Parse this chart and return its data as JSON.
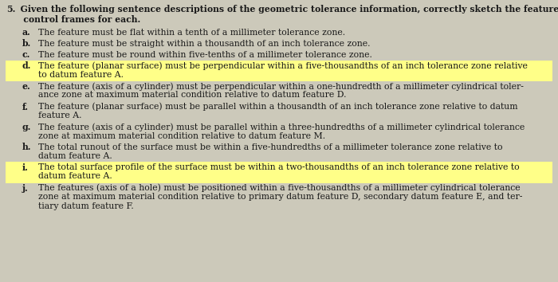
{
  "background_color": "#ccc9ba",
  "title_number": "5.",
  "title_rest": "  Given the following sentence descriptions of the geometric tolerance information, correctly sketch the feature",
  "title_line2": "   control frames for each.",
  "items": [
    {
      "label": "a.",
      "text": "The feature must be flat within a tenth of a millimeter tolerance zone.",
      "lines": 1,
      "highlight": false
    },
    {
      "label": "b.",
      "text": "The feature must be straight within a thousandth of an inch tolerance zone.",
      "lines": 1,
      "highlight": false
    },
    {
      "label": "c.",
      "text": "The feature must be round within five-tenths of a millimeter tolerance zone.",
      "lines": 1,
      "highlight": false
    },
    {
      "label": "d.",
      "text": "The feature (planar surface) must be perpendicular within a five-thousandths of an inch tolerance zone relative\n      to datum feature A.",
      "lines": 2,
      "highlight": true
    },
    {
      "label": "e.",
      "text": "The feature (axis of a cylinder) must be perpendicular within a one-hundredth of a millimeter cylindrical toler-\n      ance zone at maximum material condition relative to datum feature D.",
      "lines": 2,
      "highlight": false
    },
    {
      "label": "f.",
      "text": "The feature (planar surface) must be parallel within a thousandth of an inch tolerance zone relative to datum\n      feature A.",
      "lines": 2,
      "highlight": false
    },
    {
      "label": "g.",
      "text": "The feature (axis of a cylinder) must be parallel within a three-hundredths of a millimeter cylindrical tolerance\n      zone at maximum material condition relative to datum feature M.",
      "lines": 2,
      "highlight": false
    },
    {
      "label": "h.",
      "text": "The total runout of the surface must be within a five-hundredths of a millimeter tolerance zone relative to\n      datum feature A.",
      "lines": 2,
      "highlight": false
    },
    {
      "label": "i.",
      "text": "The total surface profile of the surface must be within a two-thousandths of an inch tolerance zone relative to\n      datum feature A.",
      "lines": 2,
      "highlight": true
    },
    {
      "label": "j.",
      "text": "The features (axis of a hole) must be positioned within a five-thousandths of a millimeter cylindrical tolerance\n      zone at maximum material condition relative to primary datum feature D, secondary datum feature E, and ter-\n      tiary datum feature F.",
      "lines": 3,
      "highlight": false
    }
  ],
  "highlight_color": "#ffff88",
  "text_color": "#1a1a1a",
  "font_family": "DejaVu Serif",
  "title_fontsize": 7.8,
  "item_fontsize": 7.8
}
